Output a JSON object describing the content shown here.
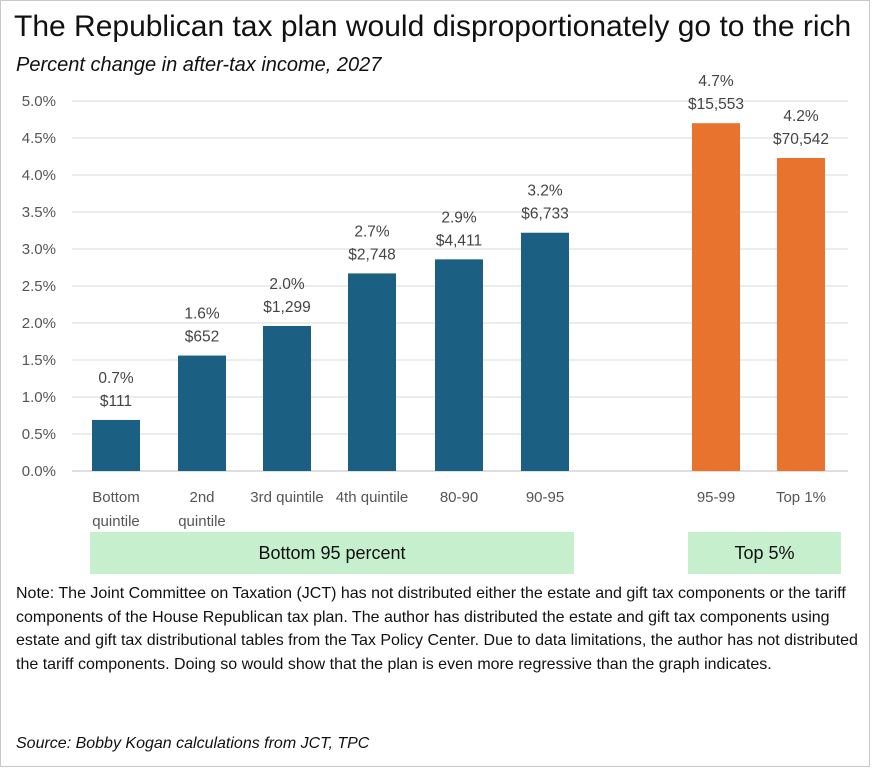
{
  "chart_data": {
    "type": "bar",
    "title": "The Republican tax plan would disproportionately go to the rich",
    "subtitle": "Percent change in after-tax income, 2027",
    "ylabel": "",
    "xlabel": "",
    "ylim": [
      0,
      5
    ],
    "ytick_step": 0.5,
    "grid": true,
    "categories": [
      "Bottom quintile",
      "2nd quintile",
      "3rd quintile",
      "4th quintile",
      "80-90",
      "90-95",
      "95-99",
      "Top 1%"
    ],
    "category_lines": [
      [
        "Bottom",
        "quintile"
      ],
      [
        "2nd",
        "quintile"
      ],
      [
        "3rd quintile"
      ],
      [
        "4th quintile"
      ],
      [
        "80-90"
      ],
      [
        "90-95"
      ],
      [
        "95-99"
      ],
      [
        "Top 1%"
      ]
    ],
    "values": [
      0.7,
      1.6,
      2.0,
      2.7,
      2.9,
      3.2,
      4.7,
      4.2
    ],
    "plot_values": [
      0.69,
      1.56,
      1.96,
      2.67,
      2.86,
      3.22,
      4.7,
      4.23
    ],
    "pct_labels": [
      "0.7%",
      "1.6%",
      "2.0%",
      "2.7%",
      "2.9%",
      "3.2%",
      "4.7%",
      "4.2%"
    ],
    "dollar_labels": [
      "$111",
      "$652",
      "$1,299",
      "$2,748",
      "$4,411",
      "$6,733",
      "$15,553",
      "$70,542"
    ],
    "bar_colors": [
      "#1b5f82",
      "#1b5f82",
      "#1b5f82",
      "#1b5f82",
      "#1b5f82",
      "#1b5f82",
      "#e8732f",
      "#e8732f"
    ],
    "groups": [
      {
        "label": "Bottom 95 percent",
        "color": "#c6efce"
      },
      {
        "label": "Top 5%",
        "color": "#c6efce"
      }
    ]
  },
  "note": "Note: The Joint Committee on Taxation (JCT) has not distributed either the estate and gift tax components or the tariff components of the House Republican tax plan. The author has distributed the estate and gift tax components using estate and gift tax distributional tables from the Tax Policy Center.  Due to data limitations, the author has not distributed the tariff components. Doing so would show that the plan is even more regressive than the graph indicates.",
  "source": "Source: Bobby Kogan calculations from JCT, TPC"
}
